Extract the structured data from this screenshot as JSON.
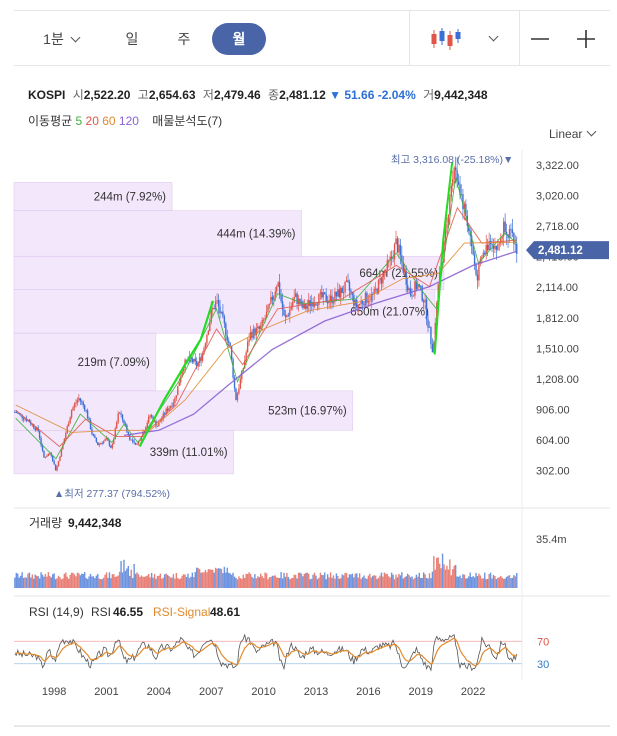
{
  "toolbar": {
    "tabs": [
      {
        "label": "1분",
        "active": false
      },
      {
        "label": "일",
        "active": false
      },
      {
        "label": "주",
        "active": false
      },
      {
        "label": "월",
        "active": true
      }
    ],
    "chart_type_icon": "candlestick-icon",
    "minus_icon": "minus-icon",
    "plus_icon": "plus-icon"
  },
  "quote": {
    "symbol": "KOSPI",
    "open_label": "시",
    "open": "2,522.20",
    "high_label": "고",
    "high": "2,654.63",
    "low_label": "저",
    "low": "2,479.46",
    "close_label": "종",
    "close": "2,481.12",
    "change": "▼ 51.66",
    "change_pct": "-2.04%",
    "volume_label": "거",
    "volume": "9,442,348"
  },
  "indicators": {
    "ma_label": "이동평균",
    "ma_periods": [
      "5",
      "20",
      "60",
      "120"
    ],
    "ma_colors": [
      "#3db03d",
      "#e0554a",
      "#e08a2e",
      "#8a63d2"
    ],
    "vp_label": "매물분석도(7)"
  },
  "scale_label": "Linear",
  "colors": {
    "up": "#e0554a",
    "down": "#3b6fd6",
    "accent": "#4a64a8",
    "profile": "#f1e3fb"
  },
  "chart_data": {
    "type": "candlestick",
    "symbol": "KOSPI",
    "period": "monthly",
    "last_price": "2,481.12",
    "ylim": [
      150,
      3470
    ],
    "y_ticks": [
      "3,322.00",
      "3,020.00",
      "2,718.00",
      "2,416.00",
      "2,114.00",
      "1,812.00",
      "1,510.00",
      "1,208.00",
      "906.00",
      "604.00",
      "302.00"
    ],
    "x_ticks": [
      "1998",
      "2001",
      "2004",
      "2007",
      "2010",
      "2013",
      "2016",
      "2019",
      "2022"
    ],
    "price_path": [
      [
        1996.3,
        880
      ],
      [
        1997.0,
        800
      ],
      [
        1997.6,
        690
      ],
      [
        1997.9,
        430
      ],
      [
        1998.3,
        480
      ],
      [
        1998.6,
        300
      ],
      [
        1999.0,
        560
      ],
      [
        1999.5,
        900
      ],
      [
        1999.9,
        1020
      ],
      [
        2000.3,
        910
      ],
      [
        2000.7,
        650
      ],
      [
        2001.0,
        560
      ],
      [
        2001.5,
        610
      ],
      [
        2001.8,
        520
      ],
      [
        2002.2,
        880
      ],
      [
        2002.5,
        780
      ],
      [
        2002.8,
        630
      ],
      [
        2003.2,
        540
      ],
      [
        2003.6,
        690
      ],
      [
        2004.0,
        850
      ],
      [
        2004.4,
        740
      ],
      [
        2004.9,
        890
      ],
      [
        2005.4,
        1000
      ],
      [
        2005.9,
        1350
      ],
      [
        2006.3,
        1400
      ],
      [
        2006.7,
        1340
      ],
      [
        2007.0,
        1460
      ],
      [
        2007.5,
        1860
      ],
      [
        2007.8,
        1980
      ],
      [
        2008.3,
        1700
      ],
      [
        2008.6,
        1500
      ],
      [
        2008.9,
        1000
      ],
      [
        2009.3,
        1290
      ],
      [
        2009.7,
        1650
      ],
      [
        2010.3,
        1700
      ],
      [
        2010.8,
        1900
      ],
      [
        2011.3,
        2180
      ],
      [
        2011.7,
        1780
      ],
      [
        2012.3,
        2020
      ],
      [
        2012.8,
        1900
      ],
      [
        2013.3,
        1980
      ],
      [
        2013.8,
        2010
      ],
      [
        2014.3,
        1990
      ],
      [
        2014.8,
        2050
      ],
      [
        2015.3,
        2130
      ],
      [
        2015.8,
        1920
      ],
      [
        2016.3,
        2000
      ],
      [
        2016.8,
        2030
      ],
      [
        2017.3,
        2220
      ],
      [
        2017.8,
        2390
      ],
      [
        2018.1,
        2560
      ],
      [
        2018.5,
        2300
      ],
      [
        2018.9,
        2050
      ],
      [
        2019.3,
        2140
      ],
      [
        2019.7,
        1990
      ],
      [
        2020.2,
        1460
      ],
      [
        2020.5,
        2150
      ],
      [
        2020.9,
        2600
      ],
      [
        2021.2,
        3100
      ],
      [
        2021.5,
        3290
      ],
      [
        2021.9,
        2970
      ],
      [
        2022.3,
        2650
      ],
      [
        2022.7,
        2200
      ],
      [
        2023.0,
        2400
      ],
      [
        2023.5,
        2600
      ],
      [
        2023.9,
        2480
      ],
      [
        2024.3,
        2750
      ],
      [
        2024.7,
        2600
      ],
      [
        2025.0,
        2500
      ]
    ],
    "moving_averages": {
      "5": [
        [
          1996.3,
          820
        ],
        [
          1998.6,
          420
        ],
        [
          2000.0,
          860
        ],
        [
          2001.8,
          580
        ],
        [
          2002.5,
          760
        ],
        [
          2003.3,
          580
        ],
        [
          2005.9,
          1250
        ],
        [
          2007.8,
          1900
        ],
        [
          2009.0,
          1180
        ],
        [
          2011.3,
          2050
        ],
        [
          2012.8,
          1950
        ],
        [
          2015.8,
          2000
        ],
        [
          2018.1,
          2450
        ],
        [
          2019.7,
          2050
        ],
        [
          2020.4,
          1900
        ],
        [
          2021.5,
          3200
        ],
        [
          2022.8,
          2350
        ],
        [
          2024.3,
          2650
        ],
        [
          2025.0,
          2550
        ]
      ],
      "20": [
        [
          1996.3,
          900
        ],
        [
          1998.8,
          540
        ],
        [
          2000.3,
          810
        ],
        [
          2002.0,
          640
        ],
        [
          2003.5,
          640
        ],
        [
          2005.5,
          950
        ],
        [
          2007.8,
          1700
        ],
        [
          2009.3,
          1350
        ],
        [
          2011.3,
          1900
        ],
        [
          2015.0,
          2000
        ],
        [
          2018.1,
          2330
        ],
        [
          2020.0,
          2120
        ],
        [
          2021.6,
          2900
        ],
        [
          2023.0,
          2550
        ],
        [
          2025.0,
          2580
        ]
      ],
      "60": [
        [
          1996.3,
          950
        ],
        [
          1999.5,
          680
        ],
        [
          2002.0,
          700
        ],
        [
          2004.0,
          700
        ],
        [
          2006.0,
          1000
        ],
        [
          2008.3,
          1500
        ],
        [
          2010.5,
          1700
        ],
        [
          2013.0,
          1880
        ],
        [
          2016.0,
          1970
        ],
        [
          2018.5,
          2200
        ],
        [
          2020.5,
          2250
        ],
        [
          2022.0,
          2550
        ],
        [
          2025.0,
          2560
        ]
      ],
      "120": [
        [
          2002.5,
          650
        ],
        [
          2004.5,
          700
        ],
        [
          2006.5,
          860
        ],
        [
          2008.5,
          1150
        ],
        [
          2011.0,
          1500
        ],
        [
          2014.0,
          1780
        ],
        [
          2017.0,
          1960
        ],
        [
          2020.0,
          2120
        ],
        [
          2022.5,
          2330
        ],
        [
          2025.0,
          2470
        ]
      ]
    },
    "green_trend_path": [
      [
        2003.4,
        540
      ],
      [
        2004.8,
        1000
      ],
      [
        2006.0,
        1350
      ],
      [
        2006.9,
        1600
      ],
      [
        2007.6,
        1980
      ]
    ],
    "green_spike_path": [
      [
        2020.3,
        1450
      ],
      [
        2020.8,
        2600
      ],
      [
        2021.3,
        3350
      ]
    ],
    "volume_profile": [
      {
        "label": "244m (7.92%)",
        "top": 3150,
        "bottom": 2870,
        "value": 244
      },
      {
        "label": "444m (14.39%)",
        "top": 2870,
        "bottom": 2420,
        "value": 444
      },
      {
        "label": "664m (21.55%)",
        "top": 2420,
        "bottom": 2090,
        "value": 664
      },
      {
        "label": "650m (21.07%)",
        "top": 2090,
        "bottom": 1660,
        "value": 650
      },
      {
        "label": "219m (7.09%)",
        "top": 1660,
        "bottom": 1090,
        "value": 219
      },
      {
        "label": "523m (16.97%)",
        "top": 1090,
        "bottom": 700,
        "value": 523
      },
      {
        "label": "339m (11.01%)",
        "top": 700,
        "bottom": 270,
        "value": 339
      }
    ],
    "max_annotation": "최고 3,316.08 (-25.18%)▼",
    "min_annotation": "▲최저 277.37 (794.52%)",
    "volume": {
      "label": "거래량",
      "value": "9,442,348",
      "axis_max_label": "35.4m",
      "ylim": [
        0,
        40
      ]
    },
    "rsi": {
      "label": "RSI (14,9)",
      "rsi_label": "RSI",
      "rsi_value": "46.55",
      "signal_label": "RSI-Signal",
      "signal_value": "48.61",
      "levels": [
        "70",
        "30"
      ],
      "ylim": [
        10,
        90
      ]
    }
  }
}
